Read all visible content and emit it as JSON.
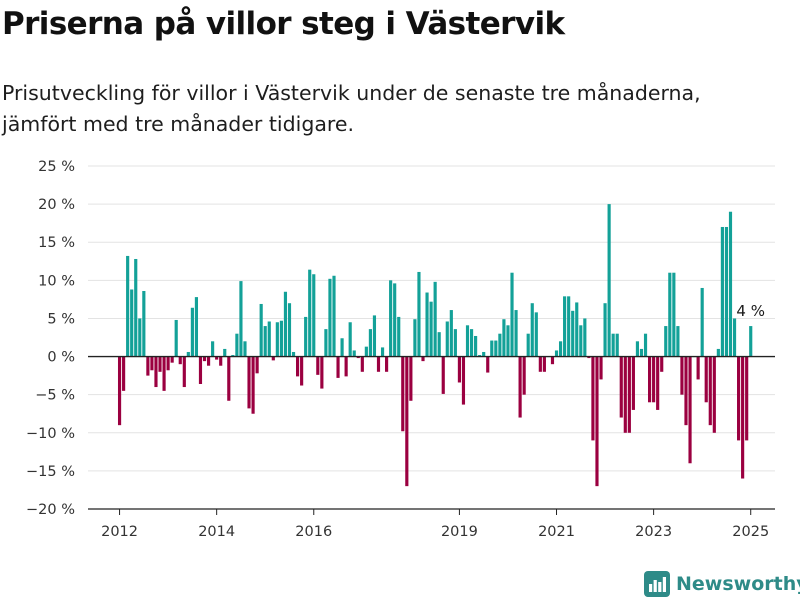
{
  "header": {
    "title": "Priserna på villor steg i Västervik",
    "subtitle": "Prisutveckling för villor i Västervik under de senaste tre månaderna, jämfört med tre månader tidigare."
  },
  "brand": {
    "name": "Newsworthy"
  },
  "chart_data": {
    "type": "bar",
    "ylim": [
      -20,
      25
    ],
    "yticks": [
      25,
      20,
      15,
      10,
      5,
      0,
      -5,
      -10,
      -15,
      -20
    ],
    "ytick_labels": [
      "25 %",
      "20 %",
      "15 %",
      "10 %",
      "5 %",
      "0 %",
      "−5 %",
      "−10 %",
      "−15 %",
      "−20 %"
    ],
    "xticks": [
      2012,
      2014,
      2016,
      2019,
      2021,
      2023,
      2025
    ],
    "xlim": [
      2011.35,
      2025.5
    ],
    "grid": true,
    "positive_color": "#13a198",
    "negative_color": "#9b0040",
    "start": {
      "year": 2012,
      "month": 1
    },
    "values": [
      -9,
      -4.5,
      13.2,
      8.8,
      12.8,
      5,
      8.6,
      -2.5,
      -1.8,
      -4,
      -2,
      -4.5,
      -1.8,
      -0.8,
      4.8,
      -1,
      -4,
      0.6,
      6.4,
      7.8,
      -3.6,
      -0.6,
      -1.2,
      2,
      -0.4,
      -1.2,
      1,
      -5.8,
      0.2,
      3,
      9.9,
      2,
      -6.8,
      -7.5,
      -2.2,
      6.9,
      4,
      4.6,
      -0.5,
      4.5,
      4.7,
      8.5,
      7,
      0.6,
      -2.6,
      -3.8,
      5.2,
      11.4,
      10.8,
      -2.4,
      -4.2,
      3.6,
      10.2,
      10.6,
      -2.8,
      2.4,
      -2.6,
      4.5,
      0.8,
      -0.2,
      -2,
      1.3,
      3.6,
      5.4,
      -2,
      1.2,
      -2,
      10,
      9.6,
      5.2,
      -9.8,
      -17,
      -5.8,
      4.9,
      11.1,
      -0.6,
      8.4,
      7.2,
      9.8,
      3.2,
      -4.9,
      4.6,
      6.1,
      3.6,
      -3.4,
      -6.3,
      4.1,
      3.6,
      2.7,
      0.2,
      0.6,
      -2.1,
      2.1,
      2.1,
      3,
      4.9,
      4.1,
      11,
      6.1,
      -8,
      -5,
      3,
      7,
      5.8,
      -2,
      -2,
      0,
      -1,
      0.8,
      2,
      7.9,
      7.9,
      6,
      7.1,
      4.1,
      5,
      -0.2,
      -11,
      -17,
      -3,
      7,
      20,
      3,
      3,
      -8,
      -10,
      -10,
      -7,
      2,
      1,
      3,
      -6,
      -6,
      -7,
      -2,
      4,
      11,
      11,
      4,
      -5,
      -9,
      -14,
      0,
      -3,
      9,
      -6,
      -9,
      -10,
      1,
      17,
      17,
      19,
      5,
      -11,
      -16,
      -11,
      4
    ],
    "annotation": {
      "text": "4 %"
    }
  }
}
